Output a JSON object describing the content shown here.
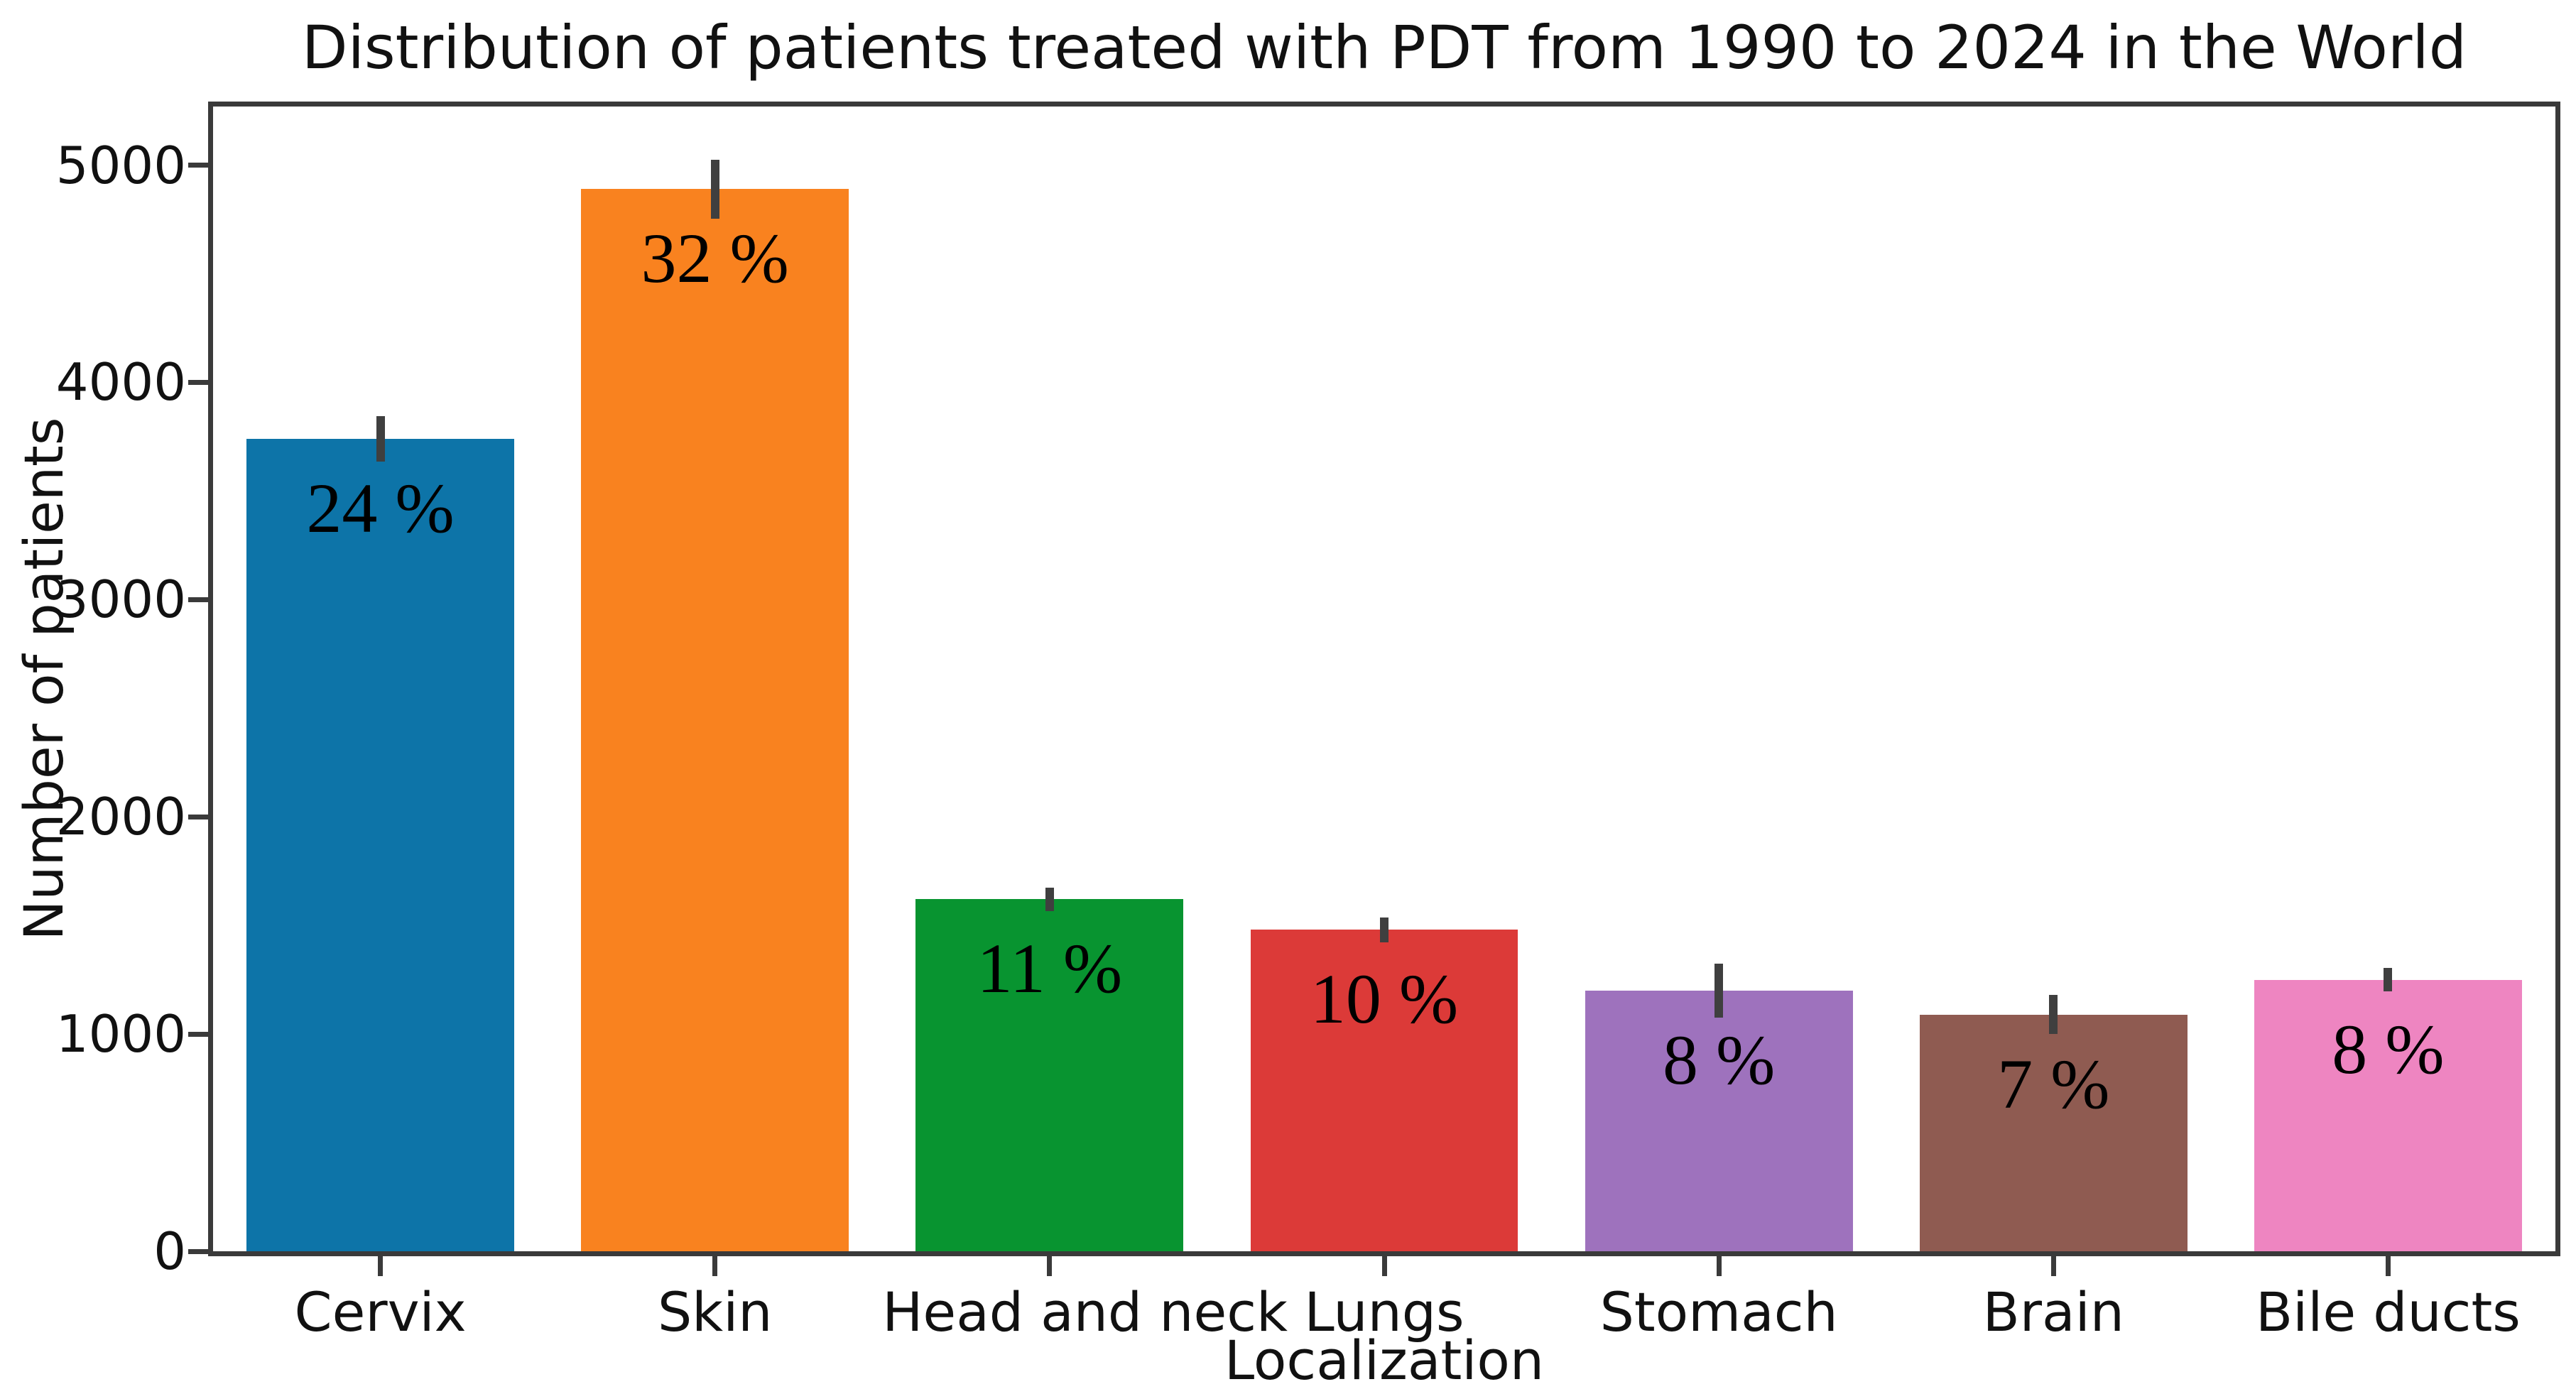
{
  "chart_data": {
    "type": "bar",
    "title": "Distribution of patients treated with PDT from 1990 to 2024 in the World",
    "xlabel": "Localization",
    "ylabel": "Number of patients",
    "categories": [
      "Cervix",
      "Skin",
      "Head and neck",
      "Lungs",
      "Stomach",
      "Brain",
      "Bile ducts"
    ],
    "values": [
      3740,
      4890,
      1620,
      1480,
      1200,
      1090,
      1250
    ],
    "value_labels": [
      "24 %",
      "32 %",
      "11 %",
      "10 %",
      "8 %",
      "7 %",
      "8 %"
    ],
    "errors": [
      105,
      135,
      55,
      57,
      125,
      90,
      55
    ],
    "bar_colors": [
      "#0d74a8",
      "#f9821f",
      "#089430",
      "#dc3a38",
      "#9e72bd",
      "#8f5b51",
      "#ee85c1"
    ],
    "error_bar_color": "#3f3f3f",
    "axis_color": "#3a3a3a",
    "yticks": [
      0,
      1000,
      2000,
      3000,
      4000,
      5000
    ],
    "ylim": [
      0,
      5270
    ],
    "grid": false,
    "legend": null,
    "bar_width_fraction": 0.8
  }
}
